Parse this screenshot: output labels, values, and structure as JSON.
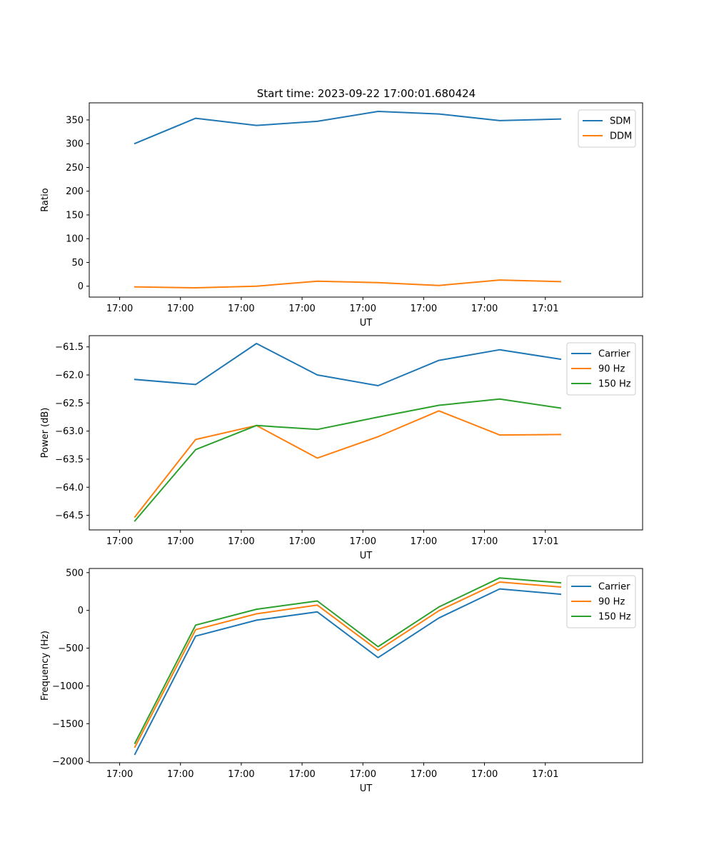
{
  "title": "Start time: 2023-09-22 17:00:01.680424",
  "colors": {
    "series_blue": "#1f77b4",
    "series_orange": "#ff7f0e",
    "series_green": "#2ca02c"
  },
  "chart_data": [
    {
      "type": "line",
      "title": "Start time: 2023-09-22 17:00:01.680424",
      "xlabel": "UT",
      "ylabel": "Ratio",
      "x_tick_labels": [
        "17:00",
        "17:00",
        "17:00",
        "17:00",
        "17:00",
        "17:00",
        "17:00",
        "17:01"
      ],
      "xlim": [
        -0.5,
        8.6
      ],
      "ylim": [
        -23,
        386
      ],
      "yticks": [
        0,
        50,
        100,
        150,
        200,
        250,
        300,
        350
      ],
      "ytick_labels": [
        "0",
        "50",
        "100",
        "150",
        "200",
        "250",
        "300",
        "350"
      ],
      "legend_position": "upper-right",
      "x": [
        0.25,
        1.25,
        2.25,
        3.25,
        4.25,
        5.25,
        6.25,
        7.25
      ],
      "series": [
        {
          "name": "SDM",
          "color": "#1f77b4",
          "values": [
            300.5,
            353.5,
            338.5,
            347.0,
            368.0,
            362.5,
            348.5,
            352.0
          ]
        },
        {
          "name": "DDM",
          "color": "#ff7f0e",
          "values": [
            -1.5,
            -3.5,
            0.0,
            10.5,
            7.5,
            1.5,
            13.0,
            9.5
          ]
        }
      ]
    },
    {
      "type": "line",
      "title": "",
      "xlabel": "UT",
      "ylabel": "Power (dB)",
      "x_tick_labels": [
        "17:00",
        "17:00",
        "17:00",
        "17:00",
        "17:00",
        "17:00",
        "17:00",
        "17:01"
      ],
      "xlim": [
        -0.5,
        8.6
      ],
      "ylim": [
        -64.76,
        -61.3
      ],
      "yticks": [
        -64.5,
        -64.0,
        -63.5,
        -63.0,
        -62.5,
        -62.0,
        -61.5
      ],
      "ytick_labels": [
        "−64.5",
        "−64.0",
        "−63.5",
        "−63.0",
        "−62.5",
        "−62.0",
        "−61.5"
      ],
      "legend_position": "upper-right",
      "x": [
        0.25,
        1.25,
        2.25,
        3.25,
        4.25,
        5.25,
        6.25,
        7.25
      ],
      "series": [
        {
          "name": "Carrier",
          "color": "#1f77b4",
          "values": [
            -62.08,
            -62.17,
            -61.44,
            -62.0,
            -62.19,
            -61.74,
            -61.55,
            -61.72
          ]
        },
        {
          "name": "90 Hz",
          "color": "#ff7f0e",
          "values": [
            -64.53,
            -63.15,
            -62.9,
            -63.48,
            -63.1,
            -62.64,
            -63.07,
            -63.06
          ]
        },
        {
          "name": "150 Hz",
          "color": "#2ca02c",
          "values": [
            -64.6,
            -63.33,
            -62.9,
            -62.97,
            -62.75,
            -62.54,
            -62.43,
            -62.59
          ]
        }
      ]
    },
    {
      "type": "line",
      "title": "",
      "xlabel": "UT",
      "ylabel": "Frequency (Hz)",
      "x_tick_labels": [
        "17:00",
        "17:00",
        "17:00",
        "17:00",
        "17:00",
        "17:00",
        "17:00",
        "17:01"
      ],
      "xlim": [
        -0.5,
        8.6
      ],
      "ylim": [
        -2017,
        555
      ],
      "yticks": [
        -2000,
        -1500,
        -1000,
        -500,
        0,
        500
      ],
      "ytick_labels": [
        "−2000",
        "−1500",
        "−1000",
        "−500",
        "0",
        "500"
      ],
      "legend_position": "upper-right",
      "x": [
        0.25,
        1.25,
        2.25,
        3.25,
        4.25,
        5.25,
        6.25,
        7.25
      ],
      "series": [
        {
          "name": "Carrier",
          "color": "#1f77b4",
          "values": [
            -1905,
            -340,
            -130,
            -20,
            -625,
            -100,
            285,
            215
          ]
        },
        {
          "name": "90 Hz",
          "color": "#ff7f0e",
          "values": [
            -1810,
            -255,
            -45,
            70,
            -530,
            -5,
            375,
            310
          ]
        },
        {
          "name": "150 Hz",
          "color": "#2ca02c",
          "values": [
            -1760,
            -195,
            15,
            125,
            -480,
            45,
            430,
            365
          ]
        }
      ]
    }
  ]
}
